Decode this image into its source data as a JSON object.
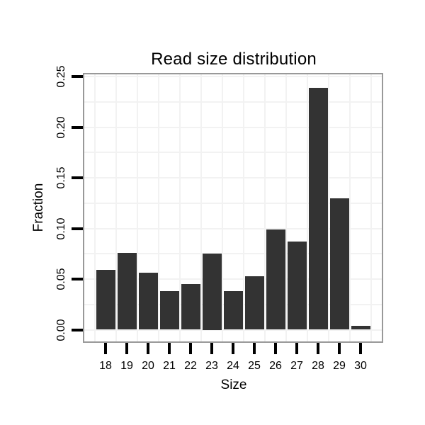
{
  "chart_data": {
    "type": "bar",
    "title": "Read size distribution",
    "xlabel": "Size",
    "ylabel": "Fraction",
    "categories": [
      "18",
      "19",
      "20",
      "21",
      "22",
      "23",
      "24",
      "25",
      "26",
      "27",
      "28",
      "29",
      "30"
    ],
    "values": [
      0.059,
      0.076,
      0.056,
      0.038,
      0.045,
      0.075,
      0.038,
      0.053,
      0.099,
      0.087,
      0.239,
      0.13,
      0.004
    ],
    "ylim": [
      0,
      0.25
    ],
    "y_tick_values": [
      0,
      0.05,
      0.1,
      0.15,
      0.2,
      0.25
    ],
    "y_tick_labels": [
      "0.00",
      "0.05",
      "0.10",
      "0.15",
      "0.20",
      "0.25"
    ],
    "grid": "on",
    "minor_grid_step": 0.025,
    "legend_position": "none",
    "colors": {
      "bar_fill": "#333333",
      "panel_border": "#999999",
      "gridline": "#f2f2f2",
      "axis_tick": "#000000",
      "text": "#000000",
      "background": "#ffffff"
    }
  }
}
